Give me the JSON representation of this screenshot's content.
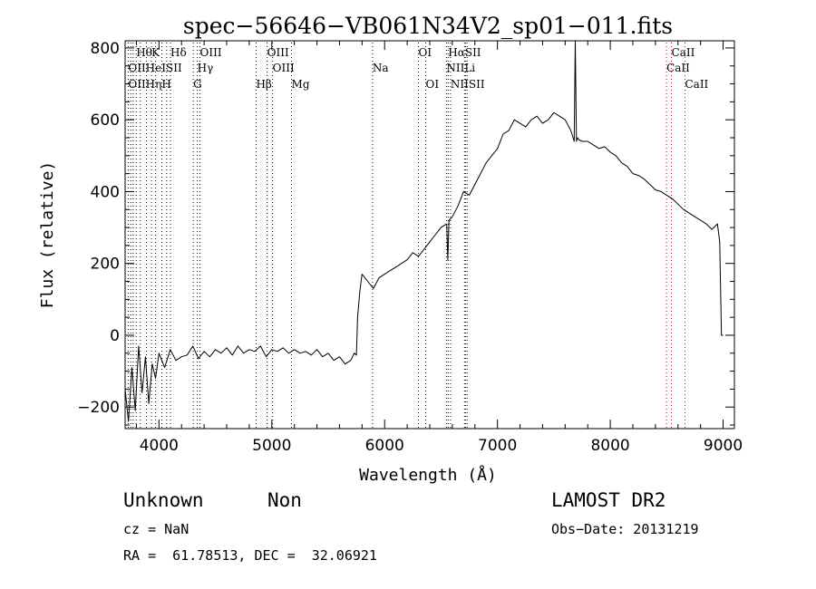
{
  "chart_data": {
    "type": "line",
    "title": "spec−56646−VB061N34V2_sp01−011.fits",
    "xlabel": "Wavelength (Å)",
    "ylabel": "Flux (relative)",
    "xlim": [
      3700,
      9100
    ],
    "ylim": [
      -260,
      820
    ],
    "x_ticks": [
      4000,
      5000,
      6000,
      7000,
      8000,
      9000
    ],
    "y_ticks": [
      -200,
      0,
      200,
      400,
      600,
      800
    ],
    "x_tick_labels": [
      "4000",
      "5000",
      "6000",
      "7000",
      "8000",
      "9000"
    ],
    "y_tick_labels": [
      "−200",
      "0",
      "200",
      "400",
      "600",
      "800"
    ],
    "grid": false,
    "series": [
      {
        "x": [
          3700,
          3730,
          3760,
          3790,
          3820,
          3850,
          3880,
          3910,
          3940,
          3970,
          4000,
          4050,
          4100,
          4150,
          4200,
          4250,
          4300,
          4350,
          4400,
          4450,
          4500,
          4550,
          4600,
          4650,
          4700,
          4750,
          4800,
          4850,
          4900,
          4950,
          5000,
          5050,
          5100,
          5150,
          5200,
          5250,
          5300,
          5350,
          5400,
          5450,
          5500,
          5550,
          5600,
          5650,
          5700,
          5730,
          5750,
          5760,
          5780,
          5800,
          5850,
          5900,
          5950,
          6000,
          6050,
          6100,
          6150,
          6200,
          6250,
          6300,
          6350,
          6400,
          6450,
          6500,
          6550,
          6560,
          6570,
          6600,
          6650,
          6700,
          6750,
          6800,
          6850,
          6900,
          6950,
          7000,
          7050,
          7100,
          7150,
          7200,
          7250,
          7300,
          7350,
          7400,
          7450,
          7500,
          7550,
          7600,
          7650,
          7680,
          7690,
          7700,
          7710,
          7720,
          7750,
          7800,
          7850,
          7900,
          7950,
          8000,
          8050,
          8100,
          8150,
          8200,
          8250,
          8300,
          8350,
          8400,
          8450,
          8500,
          8550,
          8600,
          8650,
          8700,
          8750,
          8800,
          8850,
          8900,
          8950,
          8970,
          8985,
          9000
        ],
        "y": [
          -150,
          -240,
          -90,
          -210,
          -30,
          -160,
          -60,
          -190,
          -80,
          -120,
          -50,
          -90,
          -40,
          -70,
          -60,
          -55,
          -30,
          -65,
          -45,
          -60,
          -40,
          -50,
          -35,
          -55,
          -30,
          -50,
          -40,
          -45,
          -30,
          -60,
          -40,
          -45,
          -35,
          -50,
          -40,
          -50,
          -45,
          -55,
          -40,
          -60,
          -50,
          -70,
          -60,
          -80,
          -70,
          -50,
          -55,
          50,
          120,
          170,
          150,
          130,
          160,
          170,
          180,
          190,
          200,
          210,
          230,
          220,
          240,
          260,
          280,
          300,
          310,
          210,
          320,
          330,
          360,
          400,
          390,
          420,
          450,
          480,
          500,
          520,
          560,
          570,
          600,
          590,
          580,
          600,
          610,
          590,
          600,
          620,
          610,
          600,
          570,
          540,
          820,
          540,
          550,
          545,
          540,
          540,
          530,
          520,
          525,
          510,
          500,
          480,
          470,
          450,
          445,
          435,
          420,
          405,
          400,
          390,
          380,
          365,
          350,
          340,
          330,
          320,
          310,
          295,
          310,
          260,
          0,
          0
        ]
      }
    ],
    "line_annotations": {
      "row1": [
        {
          "label": "Hθ",
          "x": 3798
        },
        {
          "label": "K",
          "x": 3934
        },
        {
          "label": "Hδ",
          "x": 4102
        },
        {
          "label": "OIII",
          "x": 4363
        },
        {
          "label": "OIII",
          "x": 4959
        },
        {
          "label": "OI",
          "x": 6300
        },
        {
          "label": "HαSII",
          "x": 6563
        },
        {
          "label": "CaII",
          "x": 8542
        }
      ],
      "row2": [
        {
          "label": "OIIHeISII",
          "x": 3727
        },
        {
          "label": "Hγ",
          "x": 4340
        },
        {
          "label": "OIII",
          "x": 5007
        },
        {
          "label": "Na",
          "x": 5893
        },
        {
          "label": "NII",
          "x": 6548
        },
        {
          "label": "Li",
          "x": 6708
        },
        {
          "label": "CaII",
          "x": 8498
        }
      ],
      "row3": [
        {
          "label": "OIIHηH",
          "x": 3727
        },
        {
          "label": "G",
          "x": 4304
        },
        {
          "label": "Hβ",
          "x": 4861
        },
        {
          "label": "Mg",
          "x": 5175
        },
        {
          "label": "OI",
          "x": 6364
        },
        {
          "label": "NIISII",
          "x": 6584
        },
        {
          "label": "CaII",
          "x": 8662
        }
      ],
      "dotted_lines_black": [
        3727,
        3750,
        3771,
        3798,
        3835,
        3889,
        3934,
        3970,
        4026,
        4068,
        4102,
        4304,
        4340,
        4363,
        4861,
        4959,
        5007,
        5175,
        5893,
        6300,
        6364,
        6548,
        6563,
        6584,
        6708,
        6716,
        6731
      ],
      "dotted_lines_red": [
        8498,
        8542,
        8662
      ],
      "colors": {
        "black": "#000000",
        "red": "#cc0000"
      }
    }
  },
  "info": {
    "class": "Unknown",
    "subclass": "Non",
    "survey": "LAMOST DR2",
    "cz": "cz = NaN",
    "obs_date": "Obs−Date: 20131219",
    "coords": "RA =  61.78513, DEC =  32.06921"
  }
}
